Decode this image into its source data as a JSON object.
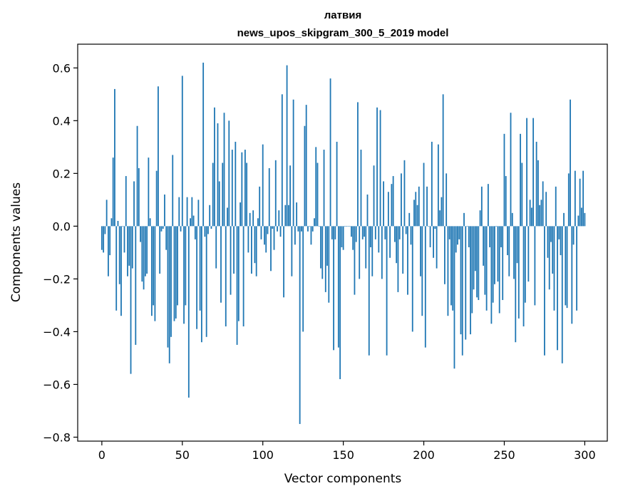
{
  "colors": {
    "bar": "#1f77b4",
    "axis": "#000000",
    "background": "#ffffff"
  },
  "chart_data": {
    "type": "bar",
    "title": "латвия",
    "subtitle": "news_upos_skipgram_300_5_2019 model",
    "xlabel": "Vector components",
    "ylabel": "Components values",
    "xlim": [
      -15,
      314
    ],
    "ylim": [
      -0.815,
      0.69
    ],
    "xticks": [
      0,
      50,
      100,
      150,
      200,
      250,
      300
    ],
    "xtick_labels": [
      "0",
      "50",
      "100",
      "150",
      "200",
      "250",
      "300"
    ],
    "yticks": [
      0.6,
      0.4,
      0.2,
      0.0,
      -0.2,
      -0.4,
      -0.6,
      -0.8
    ],
    "ytick_labels": [
      "0.6",
      "0.4",
      "0.2",
      "0.0",
      "−0.2",
      "−0.4",
      "−0.6",
      "−0.8"
    ],
    "grid": false,
    "values": [
      -0.09,
      -0.1,
      -0.03,
      0.1,
      -0.19,
      -0.11,
      0.03,
      0.26,
      0.52,
      -0.32,
      0.02,
      -0.22,
      -0.34,
      0.0,
      -0.1,
      0.19,
      -0.19,
      -0.15,
      -0.56,
      -0.16,
      0.17,
      -0.45,
      0.38,
      0.22,
      -0.06,
      -0.21,
      -0.24,
      -0.19,
      -0.18,
      0.26,
      0.03,
      -0.34,
      -0.3,
      -0.36,
      0.21,
      0.53,
      -0.18,
      -0.02,
      -0.01,
      0.12,
      -0.09,
      -0.46,
      -0.52,
      -0.42,
      0.27,
      -0.36,
      -0.35,
      -0.3,
      0.11,
      -0.02,
      0.57,
      -0.37,
      -0.3,
      0.11,
      -0.65,
      0.03,
      0.11,
      0.04,
      -0.05,
      -0.39,
      0.1,
      -0.32,
      -0.44,
      0.62,
      -0.04,
      -0.42,
      -0.03,
      0.08,
      -0.01,
      0.24,
      0.45,
      -0.16,
      0.39,
      0.17,
      -0.29,
      0.24,
      0.43,
      -0.38,
      0.07,
      0.4,
      -0.26,
      0.29,
      -0.18,
      0.32,
      -0.45,
      -0.36,
      0.09,
      0.28,
      -0.38,
      0.29,
      0.24,
      -0.1,
      0.05,
      -0.18,
      0.06,
      -0.14,
      -0.19,
      0.03,
      0.15,
      -0.05,
      0.31,
      -0.07,
      -0.1,
      -0.03,
      0.22,
      -0.17,
      -0.01,
      -0.09,
      0.25,
      -0.02,
      0.06,
      -0.04,
      0.5,
      -0.27,
      0.08,
      0.61,
      0.08,
      0.23,
      -0.19,
      0.48,
      -0.07,
      0.09,
      -0.02,
      -0.75,
      -0.02,
      -0.4,
      0.38,
      0.46,
      -0.02,
      0.0,
      -0.07,
      -0.02,
      0.03,
      0.3,
      0.24,
      0.0,
      -0.16,
      -0.2,
      0.29,
      -0.25,
      -0.15,
      -0.29,
      0.56,
      -0.05,
      -0.47,
      -0.05,
      0.32,
      -0.46,
      -0.58,
      -0.08,
      -0.09,
      0.0,
      0.0,
      0.0,
      0.0,
      -0.04,
      -0.09,
      -0.26,
      -0.06,
      0.47,
      -0.2,
      0.29,
      -0.05,
      -0.04,
      -0.16,
      0.12,
      -0.49,
      -0.08,
      -0.19,
      0.23,
      -0.05,
      0.45,
      -0.1,
      0.44,
      -0.2,
      0.17,
      -0.05,
      -0.49,
      0.13,
      -0.12,
      0.16,
      0.19,
      -0.06,
      -0.14,
      -0.25,
      -0.05,
      0.2,
      -0.18,
      0.25,
      -0.03,
      -0.26,
      0.05,
      -0.07,
      -0.4,
      0.1,
      0.13,
      0.08,
      0.15,
      -0.19,
      -0.34,
      0.24,
      -0.46,
      0.15,
      0.0,
      -0.08,
      0.32,
      -0.12,
      -0.01,
      -0.16,
      0.31,
      0.06,
      0.11,
      0.5,
      -0.22,
      0.2,
      -0.34,
      -0.05,
      -0.3,
      -0.32,
      -0.54,
      -0.1,
      -0.07,
      -0.05,
      -0.41,
      -0.49,
      0.05,
      -0.43,
      0.0,
      -0.08,
      -0.41,
      -0.33,
      -0.24,
      -0.17,
      -0.27,
      -0.28,
      0.06,
      0.15,
      -0.15,
      -0.26,
      -0.32,
      0.16,
      -0.08,
      -0.37,
      -0.29,
      -0.22,
      0.0,
      -0.21,
      -0.33,
      -0.08,
      -0.28,
      0.35,
      0.19,
      -0.11,
      -0.19,
      0.43,
      0.05,
      -0.2,
      -0.44,
      -0.14,
      -0.35,
      0.35,
      0.24,
      -0.38,
      -0.29,
      0.41,
      -0.21,
      0.1,
      0.07,
      0.41,
      -0.3,
      0.32,
      0.25,
      0.08,
      0.1,
      0.17,
      -0.49,
      0.13,
      -0.12,
      -0.24,
      -0.06,
      -0.18,
      -0.32,
      0.15,
      -0.47,
      -0.05,
      -0.11,
      -0.52,
      0.05,
      -0.3,
      -0.31,
      0.2,
      0.48,
      -0.37,
      -0.07,
      0.21,
      -0.32,
      0.04,
      0.18,
      0.07,
      0.21,
      0.05
    ]
  }
}
